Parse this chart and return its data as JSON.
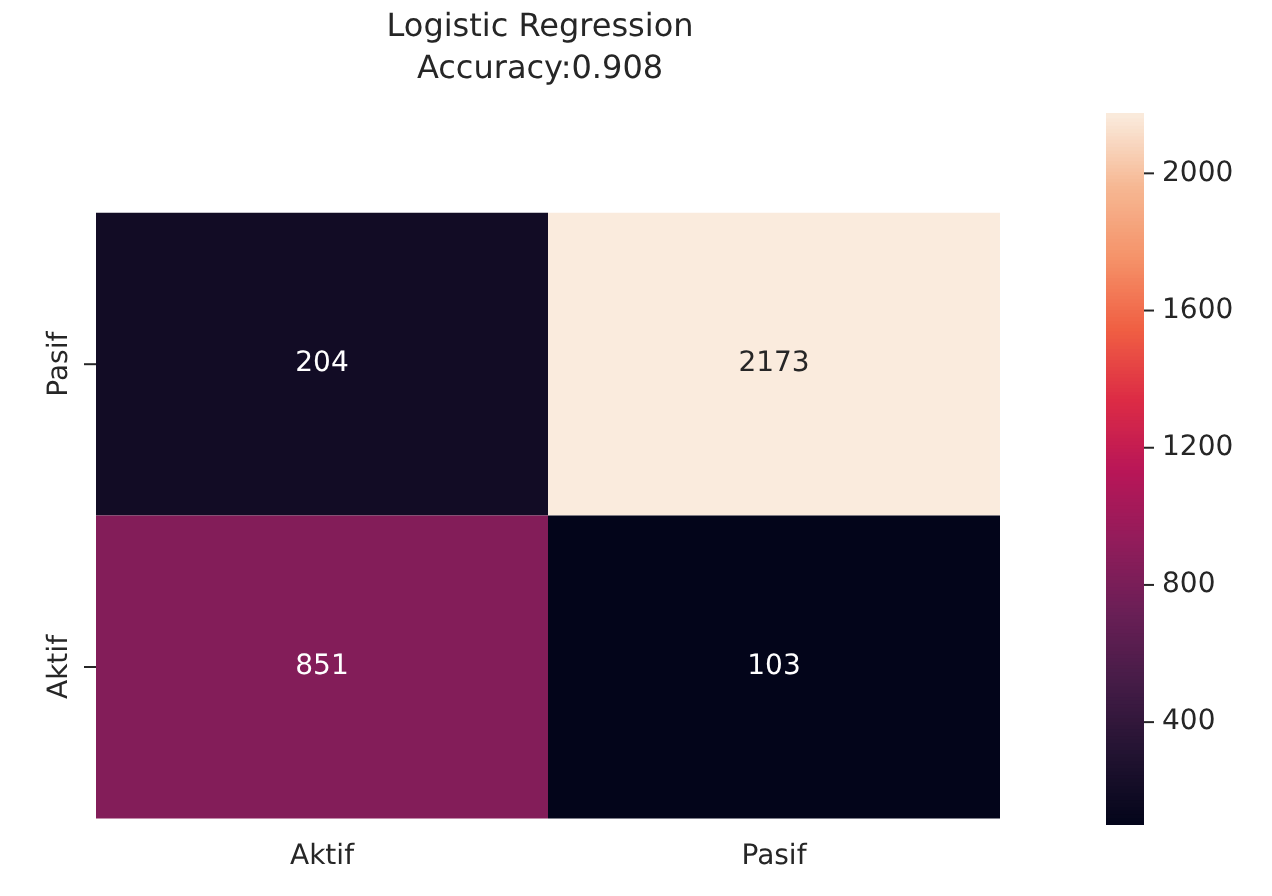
{
  "chart_data": {
    "type": "heatmap",
    "title": "Logistic Regression",
    "subtitle": "Accuracy:0.908",
    "categories": [
      "Aktif",
      "Pasif"
    ],
    "y_categories": [
      "Pasif",
      "Aktif"
    ],
    "cells": [
      [
        204,
        2173
      ],
      [
        851,
        103
      ]
    ],
    "data_labels": true,
    "clim": [
      103,
      2173
    ],
    "cticks": [
      400,
      800,
      1200,
      1600,
      2000
    ]
  }
}
